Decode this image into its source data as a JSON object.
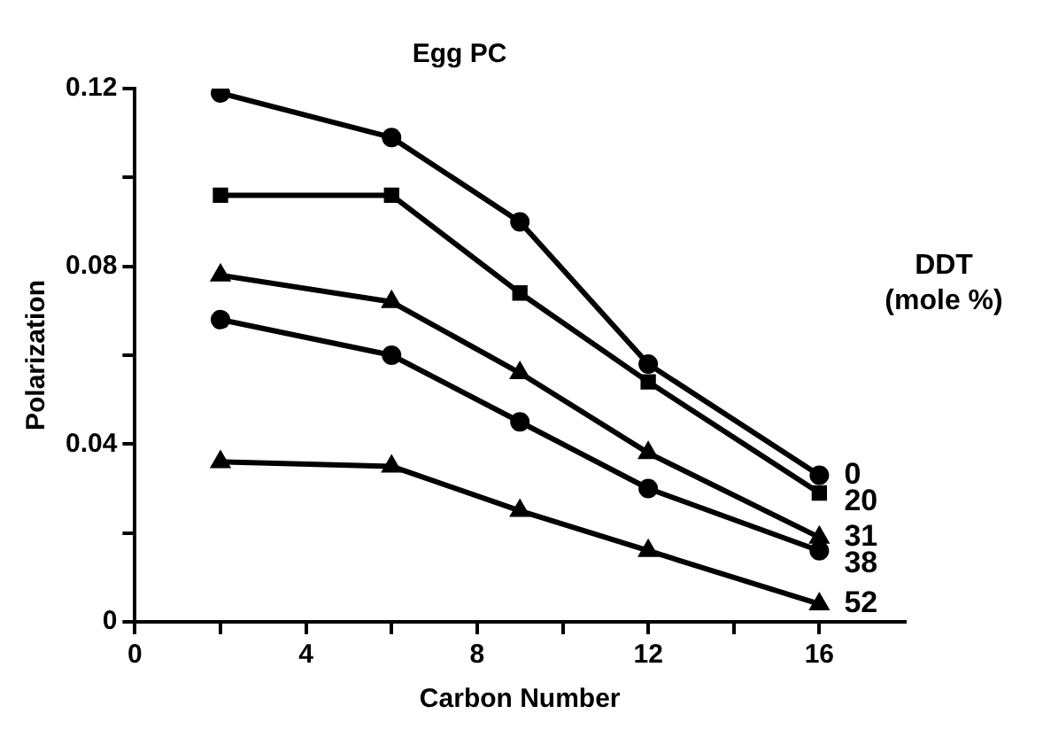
{
  "chart_data": {
    "type": "line",
    "title": "Egg PC",
    "xlabel": "Carbon Number",
    "ylabel": "Polarization",
    "legend_title": "DDT\n(mole %)",
    "x": [
      2,
      6,
      9,
      12,
      16
    ],
    "series": [
      {
        "name": "0",
        "color": "#000000",
        "marker": "circle",
        "values": [
          0.119,
          0.109,
          0.09,
          0.058,
          0.033
        ]
      },
      {
        "name": "20",
        "color": "#000000",
        "marker": "square",
        "values": [
          0.096,
          0.096,
          0.074,
          0.054,
          0.029
        ]
      },
      {
        "name": "31",
        "color": "#000000",
        "marker": "triangle",
        "values": [
          0.078,
          0.072,
          0.056,
          0.038,
          0.019
        ]
      },
      {
        "name": "38",
        "color": "#000000",
        "marker": "circle",
        "values": [
          0.068,
          0.06,
          0.045,
          0.03,
          0.016
        ]
      },
      {
        "name": "52",
        "color": "#000000",
        "marker": "triangle",
        "values": [
          0.036,
          0.035,
          0.025,
          0.016,
          0.004
        ]
      }
    ],
    "xlim": [
      0,
      18
    ],
    "xticks": [
      0,
      {
        "value": 2,
        "label": null
      },
      4,
      {
        "value": 6,
        "label": null
      },
      8,
      {
        "value": 10,
        "label": null
      },
      12,
      {
        "value": 14,
        "label": null
      },
      16
    ],
    "ylim": [
      0,
      0.12
    ],
    "yticks": [
      0,
      {
        "value": 0.02,
        "label": null
      },
      0.04,
      {
        "value": 0.06,
        "label": null
      },
      0.08,
      {
        "value": 0.1,
        "label": null
      },
      0.12
    ],
    "grid": false,
    "legend": false,
    "line_style": "solid"
  }
}
